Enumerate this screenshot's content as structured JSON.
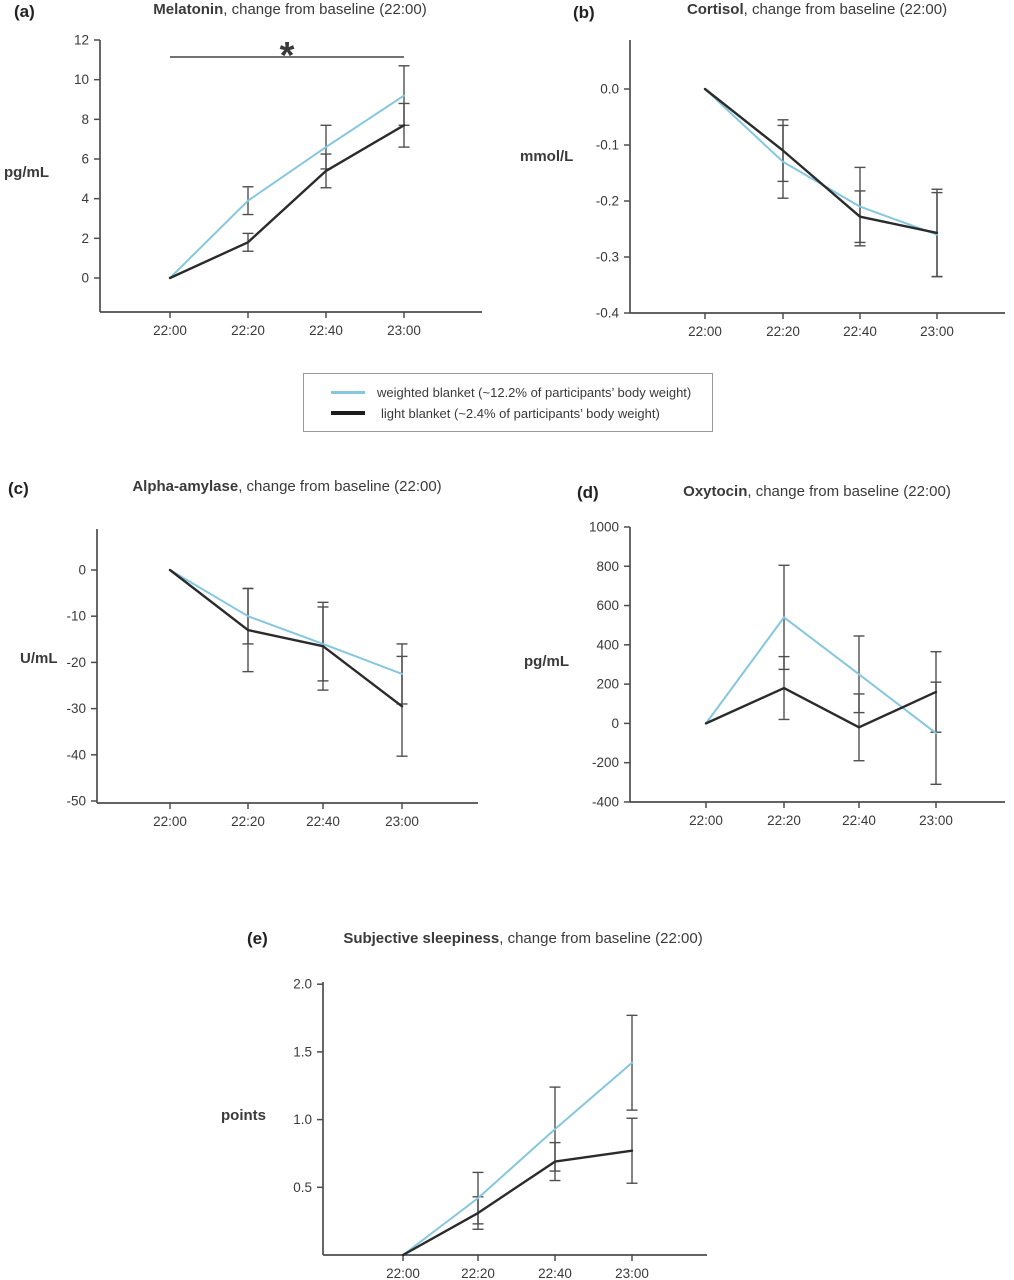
{
  "colors": {
    "weighted_blue": "#85c7de",
    "light_black": "#2b2b2b",
    "error_bar_gray": "#4f4f4f",
    "axis_gray": "#4d4d4d",
    "text_dark": "#3a3a3a"
  },
  "legend": {
    "items": [
      {
        "name": "weighted-blanket",
        "label": "weighted blanket (~12.2% of participants’ body weight)",
        "color": "#85c7de"
      },
      {
        "name": "light-blanket",
        "label": "light blanket (~2.4% of participants’ body weight)",
        "color": "#1c1c1c"
      }
    ]
  },
  "chart_data": [
    {
      "id": "a",
      "panel_label": "(a)",
      "type": "line",
      "title_bold": "Melatonin",
      "title_rest": ", change from baseline (22:00)",
      "ylabel": "pg/mL",
      "xlabel": "",
      "categories": [
        "22:00",
        "22:20",
        "22:40",
        "23:00"
      ],
      "ylim": [
        -1.7,
        12
      ],
      "yticks": [
        {
          "v": 0,
          "label": "0"
        },
        {
          "v": 2,
          "label": "2"
        },
        {
          "v": 4,
          "label": "4"
        },
        {
          "v": 6,
          "label": "6"
        },
        {
          "v": 8,
          "label": "8"
        },
        {
          "v": 10,
          "label": "10"
        },
        {
          "v": 12,
          "label": "12"
        }
      ],
      "series": [
        {
          "name": "weighted blanket",
          "color": "#85c7de",
          "width": 2,
          "values": [
            0,
            3.9,
            6.6,
            9.2
          ],
          "errors": [
            0,
            0.7,
            1.1,
            1.5
          ]
        },
        {
          "name": "light blanket",
          "color": "#2b2b2b",
          "width": 2.4,
          "values": [
            0,
            1.8,
            5.4,
            7.7
          ],
          "errors": [
            0,
            0.45,
            0.85,
            1.1
          ]
        }
      ],
      "significance": {
        "from_index": 0,
        "to_index": 3,
        "symbol": "*"
      }
    },
    {
      "id": "b",
      "panel_label": "(b)",
      "type": "line",
      "title_bold": "Cortisol",
      "title_rest": ", change from baseline (22:00)",
      "ylabel": "mmol/L",
      "xlabel": "",
      "categories": [
        "22:00",
        "22:20",
        "22:40",
        "23:00"
      ],
      "ylim": [
        -0.4,
        0.085
      ],
      "yticks": [
        {
          "v": 0,
          "label": "0.0"
        },
        {
          "v": -0.1,
          "label": "-0.1"
        },
        {
          "v": -0.2,
          "label": "-0.2"
        },
        {
          "v": -0.3,
          "label": "-0.3"
        },
        {
          "v": -0.4,
          "label": "-0.4"
        }
      ],
      "series": [
        {
          "name": "weighted blanket",
          "color": "#85c7de",
          "width": 2,
          "values": [
            0,
            -0.13,
            -0.21,
            -0.26
          ],
          "errors": [
            0,
            0.065,
            0.07,
            0.075
          ]
        },
        {
          "name": "light blanket",
          "color": "#2b2b2b",
          "width": 2.4,
          "values": [
            0,
            -0.11,
            -0.228,
            -0.257
          ],
          "errors": [
            0,
            0.055,
            0.046,
            0.078
          ]
        }
      ],
      "significance": null
    },
    {
      "id": "c",
      "panel_label": "(c)",
      "type": "line",
      "title_bold": "Alpha-amylase",
      "title_rest": ", change from baseline (22:00)",
      "ylabel": "U/mL",
      "xlabel": "",
      "categories": [
        "22:00",
        "22:20",
        "22:40",
        "23:00"
      ],
      "ylim": [
        -50,
        8.7
      ],
      "yticks": [
        {
          "v": 0,
          "label": "0"
        },
        {
          "v": -10,
          "label": "-10"
        },
        {
          "v": -20,
          "label": "-20"
        },
        {
          "v": -30,
          "label": "-30"
        },
        {
          "v": -40,
          "label": "-40"
        },
        {
          "v": -50,
          "label": "-50"
        }
      ],
      "series": [
        {
          "name": "weighted blanket",
          "color": "#85c7de",
          "width": 2,
          "values": [
            0,
            -10,
            -16,
            -22.5
          ],
          "errors": [
            0,
            6,
            8,
            6.5
          ]
        },
        {
          "name": "light blanket",
          "color": "#2b2b2b",
          "width": 2.4,
          "values": [
            0,
            -13,
            -16.5,
            -29.5
          ],
          "errors": [
            0,
            9,
            9.5,
            10.8
          ]
        }
      ],
      "significance": null
    },
    {
      "id": "d",
      "panel_label": "(d)",
      "type": "line",
      "title_bold": "Oxytocin",
      "title_rest": ", change from baseline (22:00)",
      "ylabel": "pg/mL",
      "xlabel": "",
      "categories": [
        "22:00",
        "22:20",
        "22:40",
        "23:00"
      ],
      "ylim": [
        -400,
        1000
      ],
      "yticks": [
        {
          "v": 1000,
          "label": "1000"
        },
        {
          "v": 800,
          "label": "800"
        },
        {
          "v": 600,
          "label": "600"
        },
        {
          "v": 400,
          "label": "400"
        },
        {
          "v": 200,
          "label": "200"
        },
        {
          "v": 0,
          "label": "0"
        },
        {
          "v": -200,
          "label": "-200"
        },
        {
          "v": -400,
          "label": "-400"
        }
      ],
      "series": [
        {
          "name": "weighted blanket",
          "color": "#85c7de",
          "width": 2,
          "values": [
            0,
            540,
            250,
            -50
          ],
          "errors": [
            0,
            265,
            195,
            260
          ]
        },
        {
          "name": "light blanket",
          "color": "#2b2b2b",
          "width": 2.4,
          "values": [
            0,
            180,
            -20,
            160
          ],
          "errors": [
            0,
            160,
            170,
            205
          ]
        }
      ],
      "significance": null
    },
    {
      "id": "e",
      "panel_label": "(e)",
      "type": "line",
      "title_bold": "Subjective sleepiness",
      "title_rest": ", change from baseline (22:00)",
      "ylabel": "points",
      "xlabel": "",
      "categories": [
        "22:00",
        "22:20",
        "22:40",
        "23:00"
      ],
      "ylim": [
        0,
        2.0
      ],
      "yticks": [
        {
          "v": 0.5,
          "label": "0.5"
        },
        {
          "v": 1.0,
          "label": "1.0"
        },
        {
          "v": 1.5,
          "label": "1.5"
        },
        {
          "v": 2.0,
          "label": "2.0"
        }
      ],
      "series": [
        {
          "name": "weighted blanket",
          "color": "#85c7de",
          "width": 2,
          "values": [
            0,
            0.42,
            0.93,
            1.42
          ],
          "errors": [
            0,
            0.19,
            0.31,
            0.35
          ]
        },
        {
          "name": "light blanket",
          "color": "#2b2b2b",
          "width": 2.4,
          "values": [
            0,
            0.31,
            0.69,
            0.77
          ],
          "errors": [
            0,
            0.12,
            0.14,
            0.24
          ]
        }
      ],
      "significance": null
    }
  ]
}
